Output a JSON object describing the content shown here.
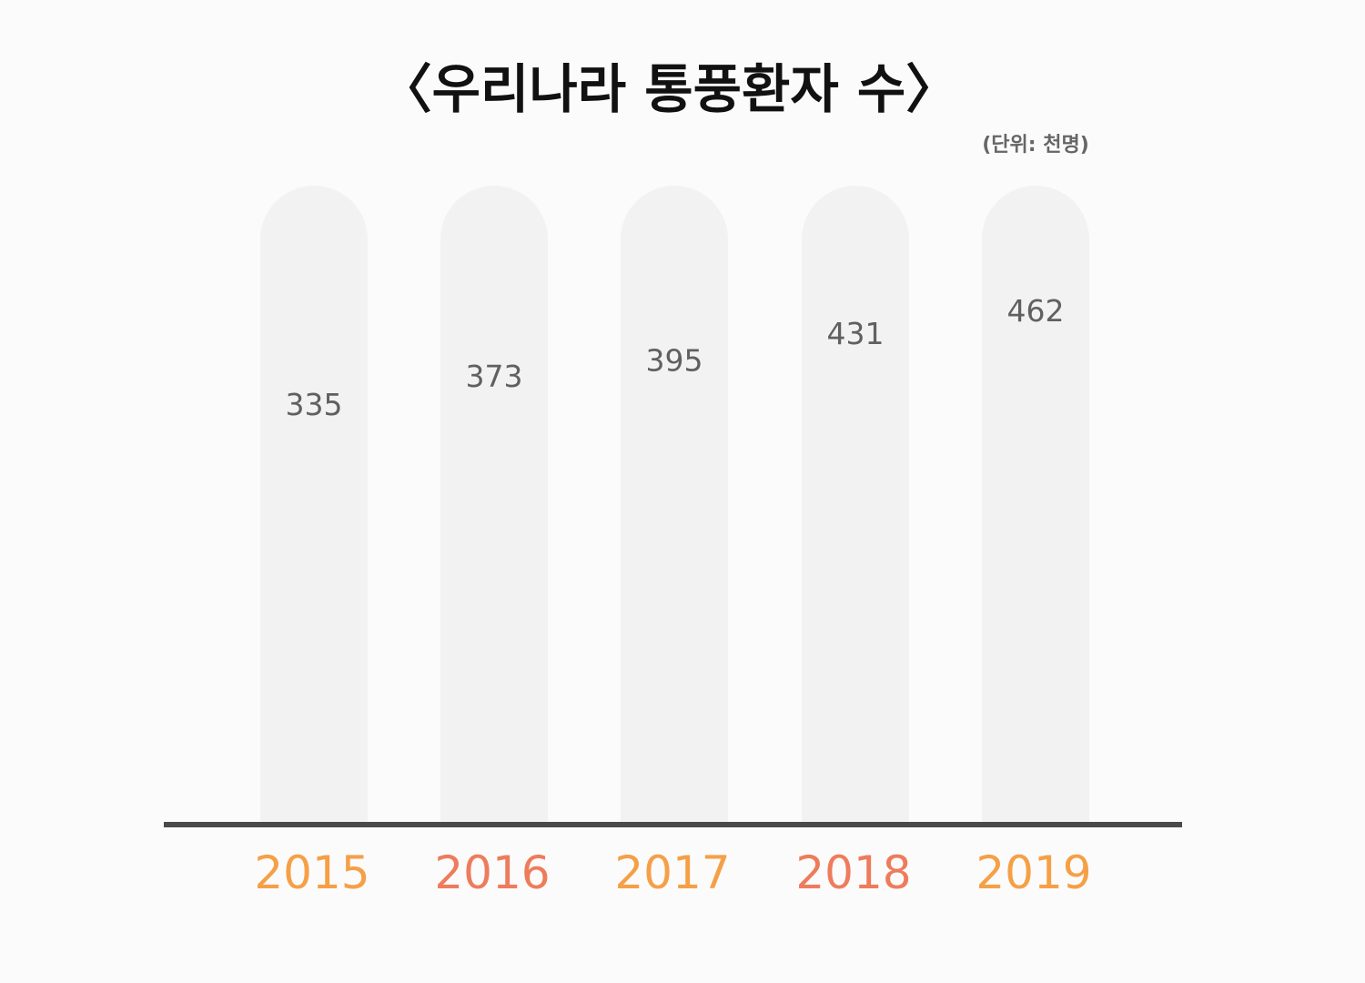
{
  "chart_data": {
    "type": "bar",
    "title": "〈우리나라 통풍환자 수〉",
    "unit_note": "(단위: 천명)",
    "categories": [
      "2015",
      "2016",
      "2017",
      "2018",
      "2019"
    ],
    "values": [
      335,
      373,
      395,
      431,
      462
    ],
    "xlabel": "",
    "ylabel": "",
    "ylim": [
      0,
      500
    ],
    "grid": false,
    "legend": "none"
  },
  "colors": {
    "background": "#fbfbfb",
    "track": "#f2f2f2",
    "axis": "#4a4a4a",
    "title": "#111111",
    "unit": "#666666",
    "value_label": "#606060",
    "category_labels": [
      "#f5a047",
      "#ee7c5c",
      "#f5a047",
      "#ee7c5c",
      "#f5a047"
    ]
  }
}
